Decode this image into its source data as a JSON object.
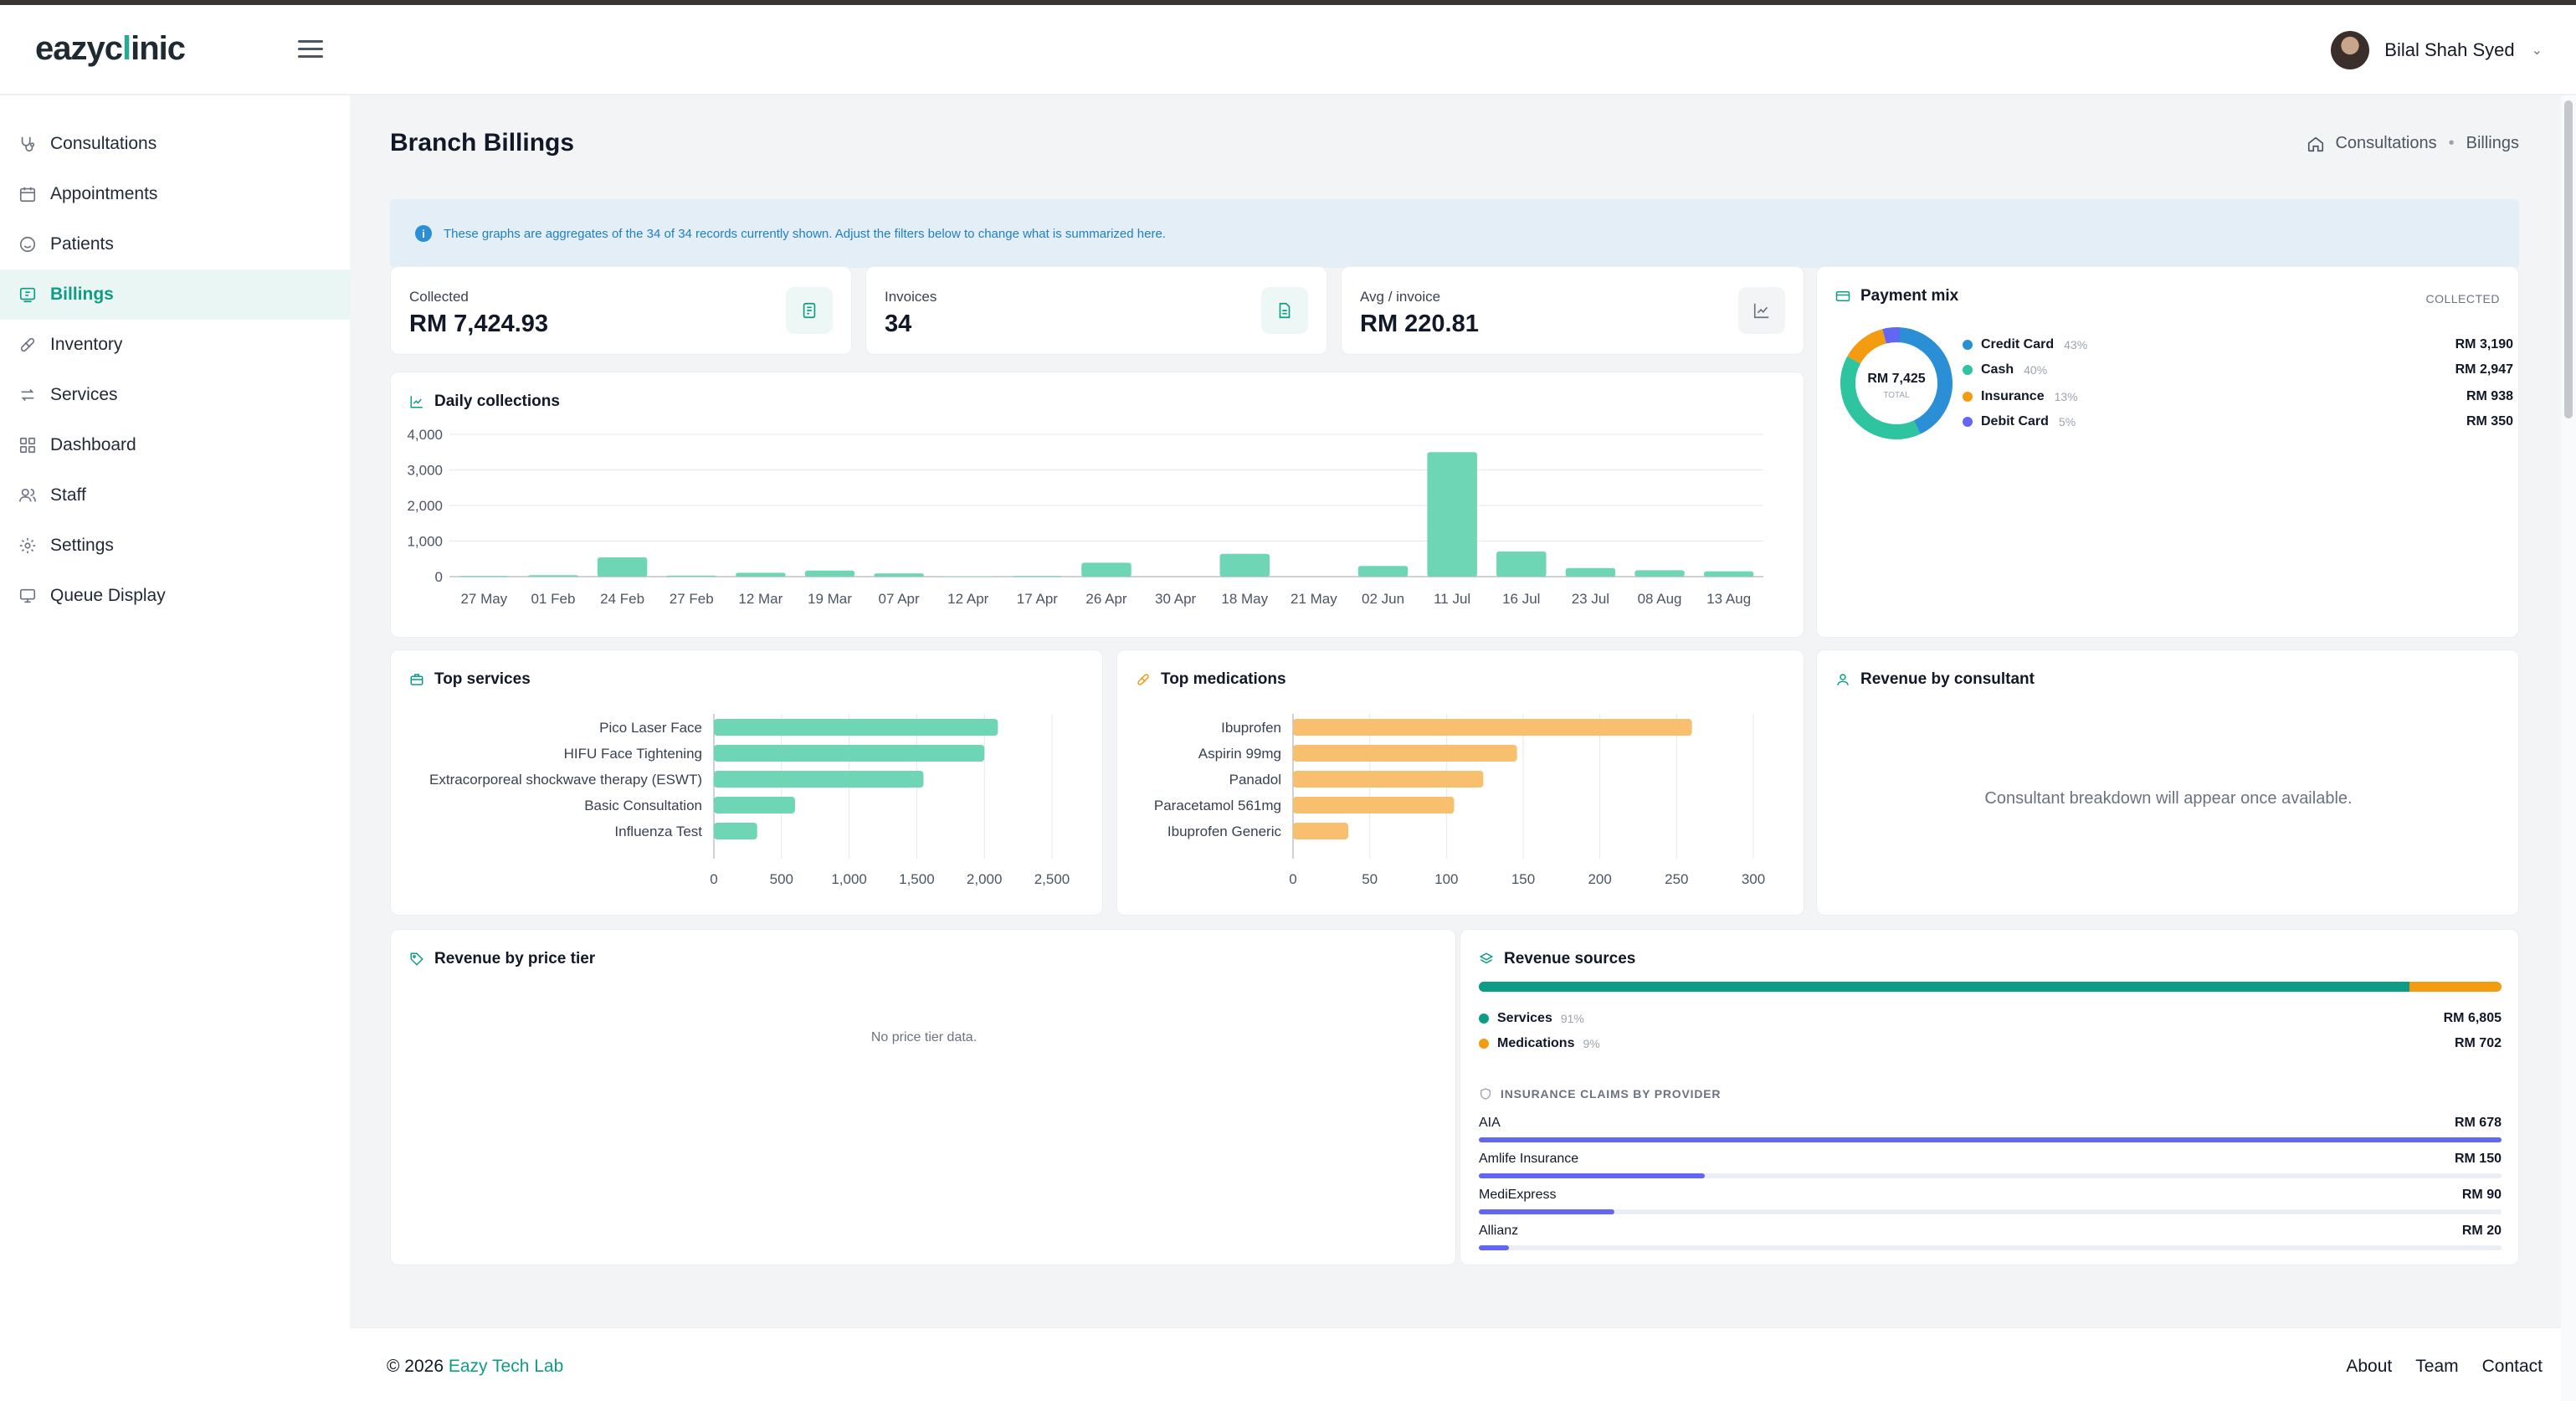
{
  "app": {
    "logo_text_a": "eazyc",
    "logo_text_x": "l",
    "logo_text_b": "inic"
  },
  "user": {
    "name": "Bilal Shah Syed"
  },
  "sidebar": {
    "items": [
      {
        "label": "Consultations",
        "icon": "stethoscope-icon"
      },
      {
        "label": "Appointments",
        "icon": "calendar-icon"
      },
      {
        "label": "Patients",
        "icon": "smile-icon"
      },
      {
        "label": "Billings",
        "icon": "billing-icon",
        "active": true
      },
      {
        "label": "Inventory",
        "icon": "pill-icon"
      },
      {
        "label": "Services",
        "icon": "arrows-icon"
      },
      {
        "label": "Dashboard",
        "icon": "grid-icon"
      },
      {
        "label": "Staff",
        "icon": "users-icon"
      },
      {
        "label": "Settings",
        "icon": "gear-icon"
      },
      {
        "label": "Queue Display",
        "icon": "monitor-icon"
      }
    ]
  },
  "page": {
    "title": "Branch Billings",
    "breadcrumb": [
      "Consultations",
      "Billings"
    ],
    "info": "These graphs are aggregates of the 34 of 34 records currently shown. Adjust the filters below to change what is summarized here."
  },
  "kpis": [
    {
      "label": "Collected",
      "value": "RM 7,424.93",
      "icon": "receipt-icon"
    },
    {
      "label": "Invoices",
      "value": "34",
      "icon": "document-icon"
    },
    {
      "label": "Avg / invoice",
      "value": "RM 220.81",
      "icon": "trend-icon"
    }
  ],
  "payment_mix": {
    "title": "Payment mix",
    "tag": "COLLECTED",
    "center_value": "RM 7,425",
    "center_label": "TOTAL",
    "items": [
      {
        "name": "Credit Card",
        "pct": "43%",
        "amount": "RM 3,190",
        "color": "#2b8fd6",
        "share": 0.43
      },
      {
        "name": "Cash",
        "pct": "40%",
        "amount": "RM 2,947",
        "color": "#2ec4a0",
        "share": 0.4
      },
      {
        "name": "Insurance",
        "pct": "13%",
        "amount": "RM 938",
        "color": "#f39c12",
        "share": 0.13
      },
      {
        "name": "Debit Card",
        "pct": "5%",
        "amount": "RM 350",
        "color": "#6366f1",
        "share": 0.05
      }
    ]
  },
  "cards": {
    "daily_title": "Daily collections",
    "services_title": "Top services",
    "meds_title": "Top medications",
    "consultant_title": "Revenue by consultant",
    "consultant_empty": "Consultant breakdown will appear once available.",
    "price_tier_title": "Revenue by price tier",
    "price_tier_empty": "No price tier data.",
    "sources_title": "Revenue sources"
  },
  "revenue_sources": {
    "services_share": 0.91,
    "items": [
      {
        "name": "Services",
        "pct": "91%",
        "amount": "RM 6,805",
        "color": "#0f9c86"
      },
      {
        "name": "Medications",
        "pct": "9%",
        "amount": "RM 702",
        "color": "#f39c12"
      }
    ],
    "claims_title": "INSURANCE CLAIMS BY PROVIDER",
    "claims": [
      {
        "name": "AIA",
        "amount": "RM 678",
        "value": 678
      },
      {
        "name": "Amlife Insurance",
        "amount": "RM 150",
        "value": 150
      },
      {
        "name": "MediExpress",
        "amount": "RM 90",
        "value": 90
      },
      {
        "name": "Allianz",
        "amount": "RM 20",
        "value": 20
      }
    ]
  },
  "footer": {
    "copyright": "© 2026",
    "brand": "Eazy Tech Lab",
    "links": [
      "About",
      "Team",
      "Contact"
    ]
  },
  "chart_data": [
    {
      "type": "bar",
      "title": "Daily collections",
      "categories": [
        "27 May",
        "01 Feb",
        "24 Feb",
        "27 Feb",
        "12 Mar",
        "19 Mar",
        "07 Apr",
        "12 Apr",
        "17 Apr",
        "26 Apr",
        "30 Apr",
        "18 May",
        "21 May",
        "02 Jun",
        "11 Jul",
        "16 Jul",
        "23 Jul",
        "08 Aug",
        "13 Aug"
      ],
      "values": [
        20,
        40,
        540,
        30,
        110,
        170,
        90,
        10,
        20,
        390,
        0,
        640,
        0,
        300,
        3500,
        710,
        240,
        180,
        150
      ],
      "yticks": [
        "4,000",
        "3,000",
        "2,000",
        "1,000",
        "0"
      ],
      "ylim": [
        0,
        4000
      ],
      "color": "#6fd6b5"
    },
    {
      "type": "bar",
      "orientation": "horizontal",
      "title": "Top services",
      "categories": [
        "Pico Laser Face",
        "HIFU Face Tightening",
        "Extracorporeal shockwave therapy (ESWT)",
        "Basic Consultation",
        "Influenza Test"
      ],
      "values": [
        2100,
        2000,
        1550,
        600,
        320
      ],
      "xticks": [
        "0",
        "500",
        "1,000",
        "1,500",
        "2,000",
        "2,500"
      ],
      "xlim": [
        0,
        2500
      ],
      "color": "#6fd6b5"
    },
    {
      "type": "bar",
      "orientation": "horizontal",
      "title": "Top medications",
      "categories": [
        "Ibuprofen",
        "Aspirin 99mg",
        "Panadol",
        "Paracetamol 561mg",
        "Ibuprofen Generic"
      ],
      "values": [
        260,
        146,
        124,
        105,
        36
      ],
      "xticks": [
        "0",
        "50",
        "100",
        "150",
        "200",
        "250",
        "300"
      ],
      "xlim": [
        0,
        300
      ],
      "color": "#f7bf6e"
    }
  ]
}
